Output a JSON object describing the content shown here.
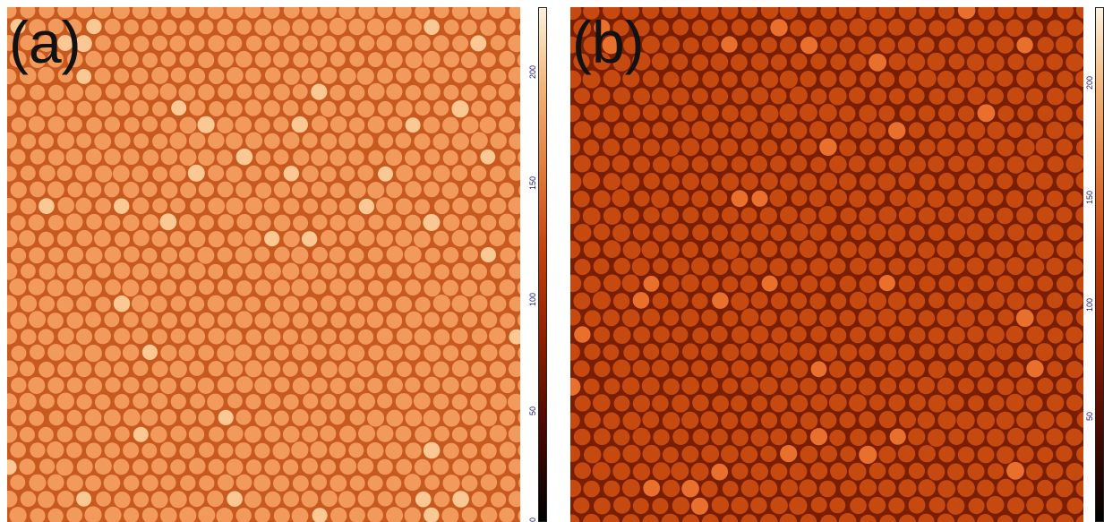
{
  "panels": [
    {
      "label": "(a)",
      "background": "#c85a20",
      "particle": "#f29a5c",
      "highlight": "#fbc894"
    },
    {
      "label": "(b)",
      "background": "#7a1e00",
      "particle": "#c64a10",
      "highlight": "#e8702c"
    }
  ],
  "scalebar": {
    "ticks_a": [
      "200",
      "150",
      "100",
      "50",
      "0"
    ],
    "ticks_b": [
      "200",
      "150",
      "100",
      "50"
    ]
  }
}
